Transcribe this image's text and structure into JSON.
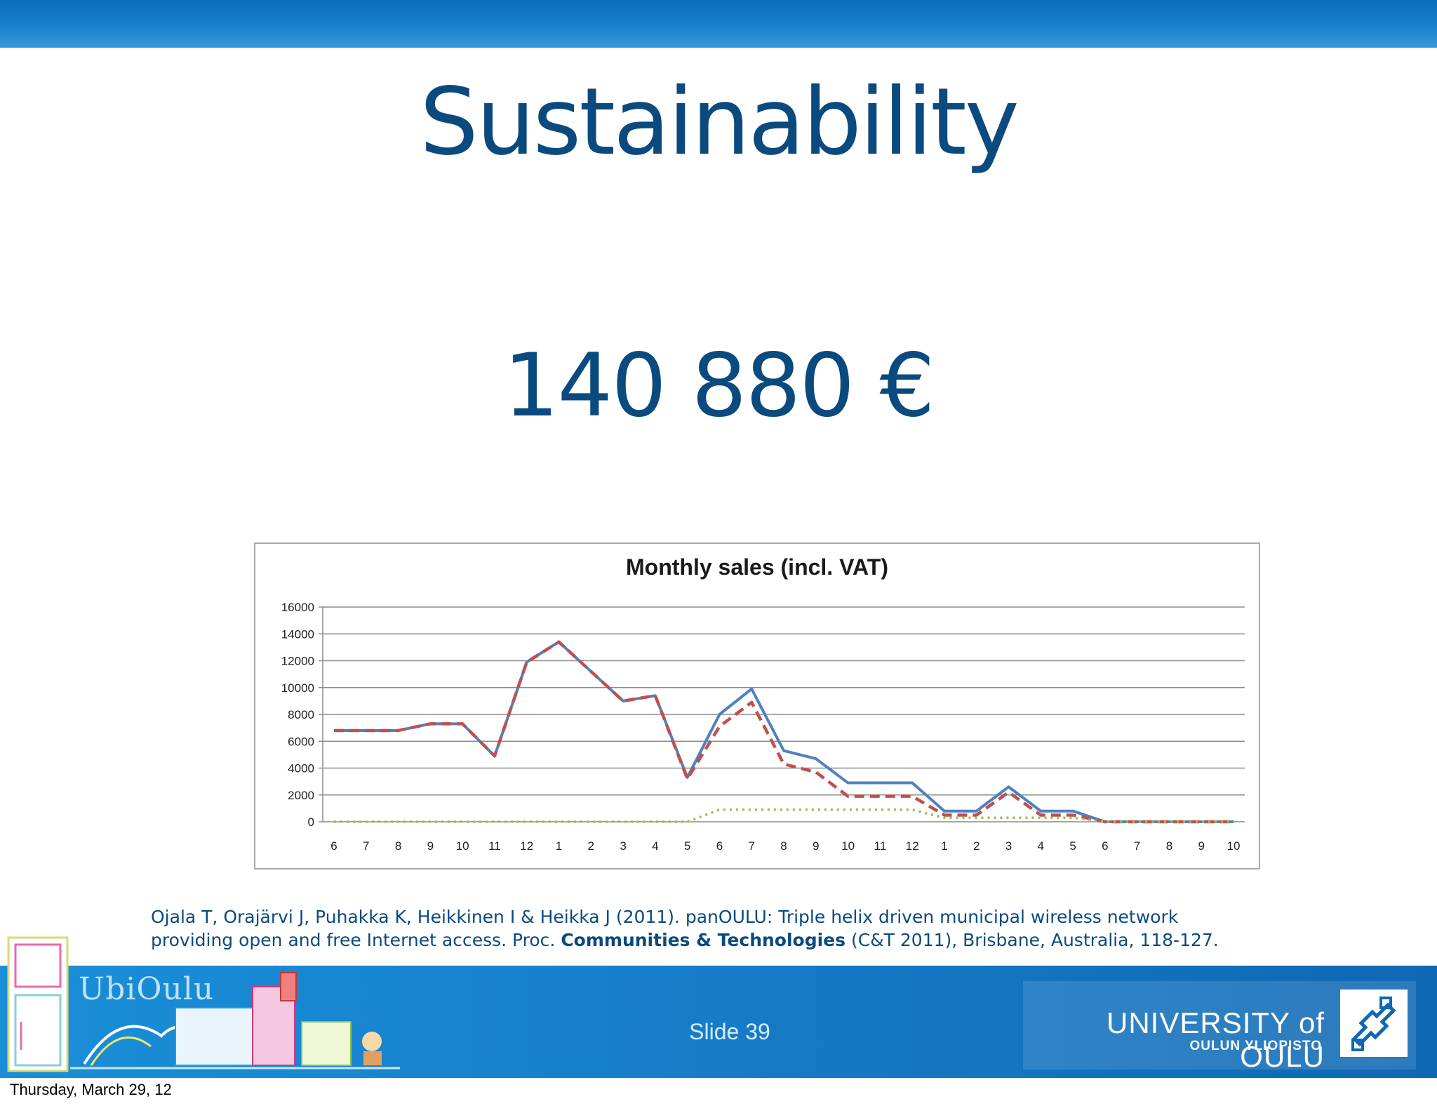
{
  "title": "Sustainability",
  "amount": "140 880 €",
  "chart_data": {
    "type": "line",
    "title": "Monthly sales (incl. VAT)",
    "xlabel": "",
    "ylabel": "",
    "categories": [
      "6",
      "7",
      "8",
      "9",
      "10",
      "11",
      "12",
      "1",
      "2",
      "3",
      "4",
      "5",
      "6",
      "7",
      "8",
      "9",
      "10",
      "11",
      "12",
      "1",
      "2",
      "3",
      "4",
      "5",
      "6",
      "7",
      "8",
      "9",
      "10"
    ],
    "yticks": [
      "0",
      "2000",
      "4000",
      "6000",
      "8000",
      "10000",
      "12000",
      "14000",
      "16000"
    ],
    "ylim": [
      0,
      16000
    ],
    "grid": true,
    "legend": "none",
    "series": [
      {
        "style": "solid",
        "color": "#4f81bd",
        "values": [
          6800,
          6800,
          6800,
          7300,
          7300,
          4900,
          11900,
          13400,
          11200,
          9000,
          9400,
          3300,
          8000,
          9900,
          5300,
          4700,
          2900,
          2900,
          2900,
          800,
          800,
          2600,
          800,
          800,
          0,
          0,
          0,
          0,
          0
        ]
      },
      {
        "style": "dashed",
        "color": "#c0504d",
        "values": [
          6800,
          6800,
          6800,
          7300,
          7300,
          4900,
          11900,
          13400,
          11200,
          9000,
          9400,
          3200,
          7100,
          8900,
          4300,
          3700,
          1900,
          1900,
          1900,
          500,
          500,
          2200,
          500,
          500,
          0,
          0,
          0,
          0,
          0
        ]
      },
      {
        "style": "dotted",
        "color": "#9bbb59",
        "values": [
          0,
          0,
          0,
          0,
          0,
          0,
          0,
          0,
          0,
          0,
          0,
          0,
          900,
          900,
          900,
          900,
          900,
          900,
          900,
          300,
          300,
          300,
          300,
          300,
          0,
          0,
          0,
          0,
          0
        ]
      }
    ]
  },
  "citation": {
    "line1": "Ojala T, Orajärvi J, Puhakka K, Heikkinen I & Heikka J (2011). panOULU: Triple helix driven municipal wireless network",
    "line2_pre": "providing open and free Internet access. Proc. ",
    "line2_bold": "Communities & Technologies",
    "line2_post": " (C&T 2011), Brisbane, Australia, 118-127."
  },
  "footer": {
    "logo_text": "UbiOulu",
    "slide_number": "Slide  39",
    "university_name": "UNIVERSITY of OULU",
    "university_sub": "OULUN YLIOPISTO"
  },
  "date": "Thursday, March 29, 12",
  "colors": {
    "title": "#0a4a7f",
    "header_bar": "#0a6fbd",
    "footer_bar": "#1780cc"
  },
  "icons": [
    "ubioulu-building-logo",
    "university-emblem-icon"
  ]
}
